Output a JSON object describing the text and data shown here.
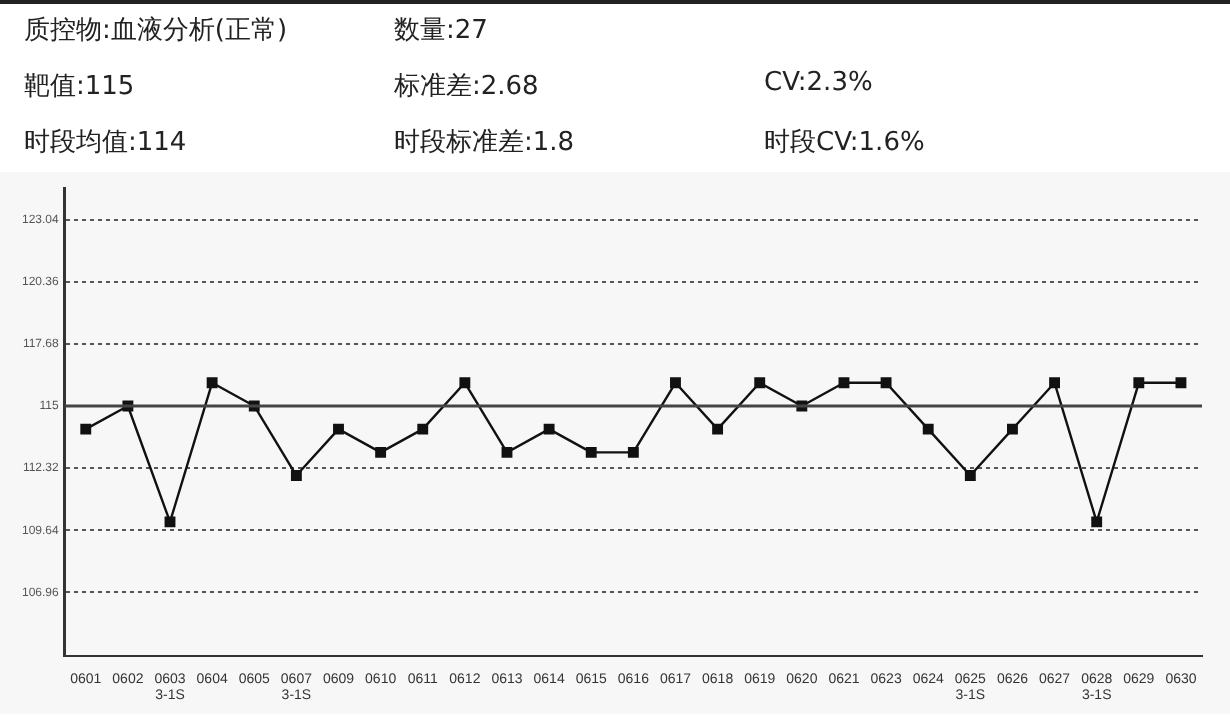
{
  "chart_data": {
    "type": "line",
    "annotations": [
      "质控物:血液分析(正常)",
      "数量:27",
      "靶值:115",
      "标准差:2.68",
      "CV:2.3%",
      "时段均值:114",
      "时段标准差:1.8",
      "时段CV:1.6%"
    ],
    "categories": [
      "0601",
      "0602",
      "0603\n3-1S",
      "0604",
      "0605",
      "0607\n3-1S",
      "0609",
      "0610",
      "0611",
      "0612",
      "0613",
      "0614",
      "0615",
      "0616",
      "0617",
      "0618",
      "0619",
      "0620",
      "0621",
      "0623",
      "0624",
      "0625\n3-1S",
      "0626",
      "0627",
      "0628\n3-1S",
      "0629",
      "0630"
    ],
    "series": [
      {
        "color": "#111111",
        "values": [
          114,
          115,
          110,
          116,
          115,
          112,
          114,
          113,
          114,
          116,
          113,
          114,
          113,
          113,
          116,
          114,
          116,
          115,
          116,
          116,
          114,
          112,
          114,
          116,
          110,
          116,
          116
        ]
      }
    ],
    "ylim": [
      104.2,
      124.4
    ],
    "yticks": [
      106.96,
      109.64,
      112.32,
      115,
      117.68,
      120.36,
      123.04
    ],
    "ref_lines": [
      {
        "axis": "y",
        "value": 115,
        "color": "#444444",
        "line_style": "solid"
      }
    ],
    "grid": "y",
    "line_style": "solid",
    "marker": "square",
    "legend": false
  }
}
